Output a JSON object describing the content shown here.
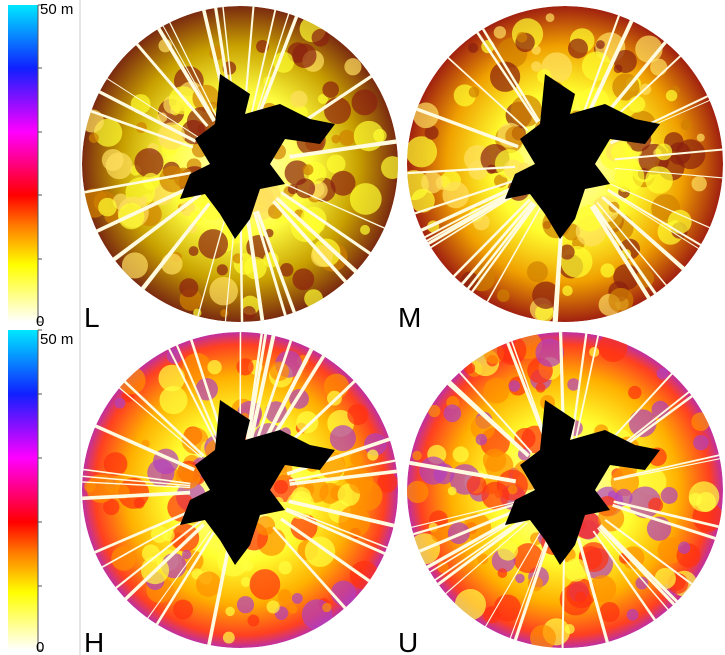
{
  "colorbars": [
    {
      "max_label": "50 m",
      "min_label": "0"
    },
    {
      "max_label": "50 m",
      "min_label": "0"
    }
  ],
  "panels": [
    {
      "label": "L"
    },
    {
      "label": "M"
    },
    {
      "label": "H"
    },
    {
      "label": "U"
    }
  ]
}
